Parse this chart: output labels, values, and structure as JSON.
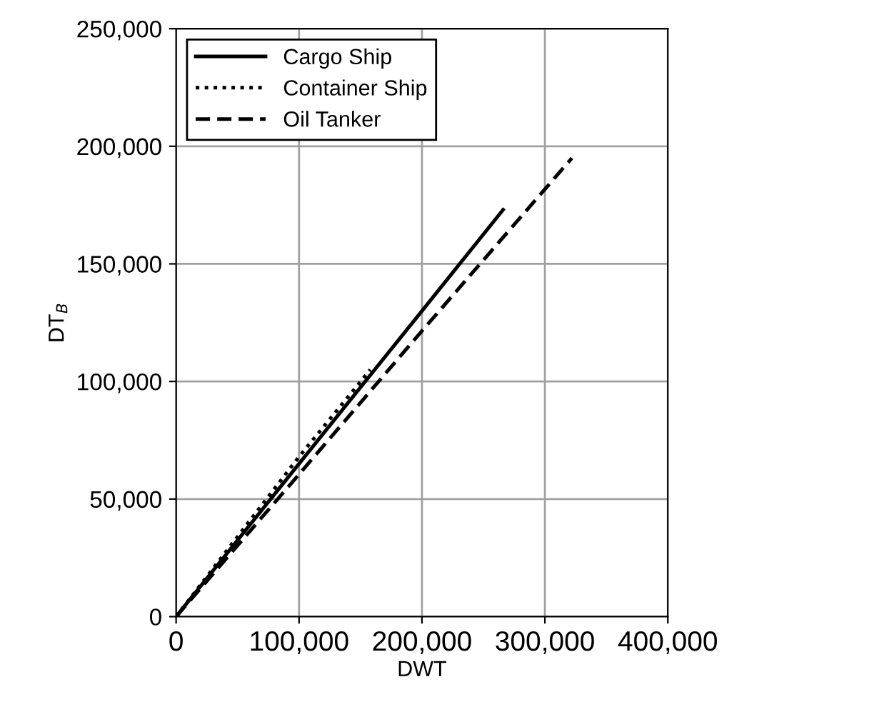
{
  "chart_data": {
    "type": "line",
    "xlabel": "DWT",
    "ylabel": "DT$_{B}$",
    "series": [
      {
        "name": "Cargo Ship",
        "color": "#000000",
        "line_style": "solid",
        "x": [
          0,
          100000,
          200000,
          266000
        ],
        "values": [
          0,
          65000,
          130000,
          173000
        ]
      },
      {
        "name": "Container Ship",
        "color": "#000000",
        "line_style": "dotted",
        "x": [
          0,
          100000,
          158000
        ],
        "values": [
          0,
          68000,
          105000
        ]
      },
      {
        "name": "Oil Tanker",
        "color": "#000000",
        "line_style": "dashed",
        "x": [
          0,
          100000,
          200000,
          322000
        ],
        "values": [
          0,
          60500,
          121500,
          195000
        ]
      }
    ],
    "xlim": [
      0,
      400000
    ],
    "xticks": [
      {
        "value": 0,
        "label": "0"
      },
      {
        "value": 100000,
        "label": "100,000"
      },
      {
        "value": 200000,
        "label": "200,000"
      },
      {
        "value": 300000,
        "label": "300,000"
      },
      {
        "value": 400000,
        "label": "400,000"
      }
    ],
    "ylim": [
      0,
      250000
    ],
    "yticks": [
      {
        "value": 0,
        "label": "0"
      },
      {
        "value": 50000,
        "label": "50,000"
      },
      {
        "value": 100000,
        "label": "100,000"
      },
      {
        "value": 150000,
        "label": "150,000"
      },
      {
        "value": 200000,
        "label": "200,000"
      },
      {
        "value": 250000,
        "label": "250,000"
      }
    ],
    "grid": true,
    "legend": "top left",
    "marker": "none"
  }
}
